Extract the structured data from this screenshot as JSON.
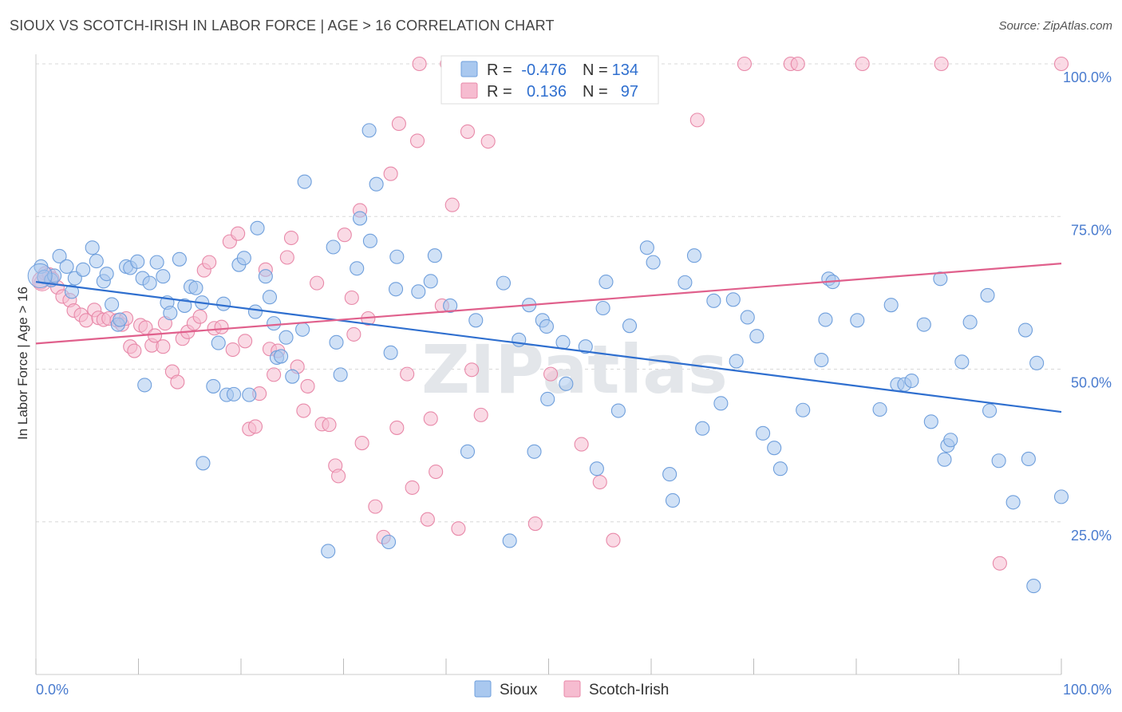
{
  "title": "SIOUX VS SCOTCH-IRISH IN LABOR FORCE | AGE > 16 CORRELATION CHART",
  "source": "Source: ZipAtlas.com",
  "watermark": "ZIPatlas",
  "legend_box": {
    "rows": [
      {
        "r_label": "R =",
        "r_value": "-0.476",
        "n_label": "N =",
        "n_value": "134"
      },
      {
        "r_label": "R =",
        "r_value": "0.136",
        "n_label": "N =",
        "n_value": "97"
      }
    ]
  },
  "bottom_legend": [
    "Sioux",
    "Scotch-Irish"
  ],
  "colors": {
    "sioux_fill": "#a9c8ef",
    "sioux_stroke": "#6f9fdc",
    "sioux_line": "#2f6fcf",
    "scotch_fill": "#f6bcd0",
    "scotch_stroke": "#e889a9",
    "scotch_line": "#e0608c",
    "grid": "#d8d8d8",
    "tick_text": "#4a7ccf"
  },
  "chart_data": {
    "type": "scatter",
    "title": "SIOUX VS SCOTCH-IRISH IN LABOR FORCE | AGE > 16 CORRELATION CHART",
    "xlabel": "",
    "ylabel": "In Labor Force | Age > 16",
    "x_tick_labels": [
      "0.0%",
      "100.0%"
    ],
    "y_tick_labels": [
      "25.0%",
      "50.0%",
      "75.0%",
      "100.0%"
    ],
    "xlim": [
      0,
      100
    ],
    "ylim": [
      0,
      100
    ],
    "grid": true,
    "legend_position": "top-center",
    "series": [
      {
        "name": "Sioux",
        "r": -0.476,
        "n": 134,
        "trend": {
          "x": [
            0,
            100
          ],
          "y": [
            64.3,
            43.0
          ]
        },
        "points": [
          [
            0.5,
            66.8
          ],
          [
            0.8,
            65.1
          ],
          [
            1.5,
            64.6
          ],
          [
            1.8,
            65.3
          ],
          [
            2.3,
            68.5
          ],
          [
            3,
            66.8
          ],
          [
            3.5,
            62.7
          ],
          [
            3.8,
            64.9
          ],
          [
            4.6,
            66.3
          ],
          [
            5.5,
            69.9
          ],
          [
            5.9,
            67.7
          ],
          [
            6.6,
            64.4
          ],
          [
            6.9,
            65.6
          ],
          [
            7.4,
            60.6
          ],
          [
            8.0,
            57.3
          ],
          [
            8.2,
            58.1
          ],
          [
            8.8,
            66.8
          ],
          [
            9.2,
            66.6
          ],
          [
            9.9,
            67.6
          ],
          [
            10.4,
            64.9
          ],
          [
            10.6,
            47.4
          ],
          [
            11.1,
            64.1
          ],
          [
            11.8,
            67.5
          ],
          [
            12.4,
            65.2
          ],
          [
            12.8,
            60.9
          ],
          [
            13.1,
            59.2
          ],
          [
            14,
            68.0
          ],
          [
            14.5,
            60.4
          ],
          [
            15.1,
            63.5
          ],
          [
            15.6,
            63.3
          ],
          [
            16.2,
            60.9
          ],
          [
            16.3,
            34.6
          ],
          [
            17.3,
            47.2
          ],
          [
            17.8,
            54.3
          ],
          [
            18.3,
            60.7
          ],
          [
            18.6,
            45.8
          ],
          [
            19.3,
            45.9
          ],
          [
            19.8,
            67.1
          ],
          [
            20.3,
            68.2
          ],
          [
            20.8,
            45.8
          ],
          [
            21.4,
            59.4
          ],
          [
            21.6,
            73.1
          ],
          [
            22.4,
            65.2
          ],
          [
            22.8,
            61.8
          ],
          [
            23.2,
            57.5
          ],
          [
            23.5,
            51.9
          ],
          [
            23.9,
            52.1
          ],
          [
            24.4,
            55.2
          ],
          [
            25,
            48.8
          ],
          [
            26,
            56.5
          ],
          [
            26.2,
            80.7
          ],
          [
            29,
            70.0
          ],
          [
            29.3,
            54.4
          ],
          [
            29.7,
            49.1
          ],
          [
            31.3,
            66.5
          ],
          [
            31.6,
            74.7
          ],
          [
            32.5,
            89.1
          ],
          [
            32.6,
            71.0
          ],
          [
            33.2,
            80.3
          ],
          [
            34.6,
            52.7
          ],
          [
            35.1,
            63.1
          ],
          [
            35.2,
            68.4
          ],
          [
            37.3,
            62.7
          ],
          [
            38.5,
            64.4
          ],
          [
            38.9,
            68.6
          ],
          [
            40.4,
            60.4
          ],
          [
            42.1,
            36.5
          ],
          [
            42.9,
            58.0
          ],
          [
            45.6,
            64.1
          ],
          [
            46.2,
            21.9
          ],
          [
            47.1,
            54.8
          ],
          [
            48.1,
            60.5
          ],
          [
            48.6,
            36.5
          ],
          [
            49.4,
            58.0
          ],
          [
            49.8,
            57.0
          ],
          [
            49.9,
            45.1
          ],
          [
            51.4,
            54.4
          ],
          [
            51.7,
            47.6
          ],
          [
            53.6,
            53.7
          ],
          [
            54.7,
            33.7
          ],
          [
            55.3,
            60.0
          ],
          [
            55.6,
            64.3
          ],
          [
            56.8,
            43.2
          ],
          [
            57.9,
            57.1
          ],
          [
            59.6,
            69.9
          ],
          [
            60.2,
            67.5
          ],
          [
            61.8,
            32.8
          ],
          [
            62.1,
            28.5
          ],
          [
            63.3,
            64.2
          ],
          [
            64.2,
            68.6
          ],
          [
            65,
            40.3
          ],
          [
            66.1,
            61.2
          ],
          [
            66.8,
            44.4
          ],
          [
            68,
            61.4
          ],
          [
            68.3,
            51.3
          ],
          [
            69.4,
            58.5
          ],
          [
            70.3,
            55.4
          ],
          [
            70.9,
            39.5
          ],
          [
            72,
            37.1
          ],
          [
            72.6,
            33.7
          ],
          [
            74.8,
            43.3
          ],
          [
            76.6,
            51.5
          ],
          [
            77,
            58.1
          ],
          [
            77.3,
            64.8
          ],
          [
            77.7,
            64.3
          ],
          [
            80.1,
            58.0
          ],
          [
            82.3,
            43.4
          ],
          [
            83.4,
            60.5
          ],
          [
            84,
            47.5
          ],
          [
            84.7,
            47.5
          ],
          [
            85.4,
            48.1
          ],
          [
            86.6,
            57.3
          ],
          [
            87.3,
            41.4
          ],
          [
            88.2,
            64.8
          ],
          [
            88.6,
            35.2
          ],
          [
            88.9,
            37.5
          ],
          [
            89.2,
            38.4
          ],
          [
            90.3,
            51.2
          ],
          [
            91.1,
            57.7
          ],
          [
            92.8,
            62.1
          ],
          [
            93,
            43.2
          ],
          [
            93.9,
            35.0
          ],
          [
            95.3,
            28.2
          ],
          [
            96.5,
            56.4
          ],
          [
            96.8,
            35.3
          ],
          [
            97.3,
            14.5
          ],
          [
            97.6,
            51.0
          ],
          [
            100,
            29.1
          ],
          [
            28.5,
            20.2
          ],
          [
            34.4,
            21.7
          ]
        ]
      },
      {
        "name": "Scotch-Irish",
        "r": 0.136,
        "n": 97,
        "trend": {
          "x": [
            0,
            100
          ],
          "y": [
            54.2,
            67.3
          ]
        },
        "points": [
          [
            0.5,
            64.2
          ],
          [
            0.9,
            65.7
          ],
          [
            1.3,
            65.5
          ],
          [
            1.6,
            64.8
          ],
          [
            2.1,
            63.4
          ],
          [
            2.6,
            61.9
          ],
          [
            3.3,
            61.3
          ],
          [
            3.7,
            59.6
          ],
          [
            4.4,
            58.9
          ],
          [
            4.9,
            58.0
          ],
          [
            5.7,
            59.7
          ],
          [
            6.1,
            58.4
          ],
          [
            6.6,
            58.1
          ],
          [
            7.1,
            58.3
          ],
          [
            7.9,
            58.0
          ],
          [
            8.4,
            57.3
          ],
          [
            8.8,
            58.3
          ],
          [
            9.2,
            53.7
          ],
          [
            9.6,
            53.0
          ],
          [
            10.2,
            57.2
          ],
          [
            10.7,
            56.8
          ],
          [
            11.3,
            53.9
          ],
          [
            11.6,
            55.5
          ],
          [
            12.4,
            53.7
          ],
          [
            12.6,
            57.5
          ],
          [
            13.3,
            49.6
          ],
          [
            13.8,
            47.9
          ],
          [
            14.3,
            55.0
          ],
          [
            14.8,
            56.1
          ],
          [
            15.4,
            57.5
          ],
          [
            16,
            58.6
          ],
          [
            16.4,
            66.2
          ],
          [
            16.9,
            67.5
          ],
          [
            17.4,
            56.7
          ],
          [
            18.1,
            56.9
          ],
          [
            18.9,
            70.9
          ],
          [
            19.2,
            53.2
          ],
          [
            19.7,
            72.2
          ],
          [
            20.4,
            54.6
          ],
          [
            20.8,
            40.2
          ],
          [
            21.4,
            40.6
          ],
          [
            21.8,
            46.0
          ],
          [
            22.4,
            66.3
          ],
          [
            22.8,
            53.3
          ],
          [
            23.2,
            49.1
          ],
          [
            23.6,
            53.0
          ],
          [
            24.5,
            68.3
          ],
          [
            24.9,
            71.5
          ],
          [
            25.5,
            50.4
          ],
          [
            26.1,
            43.2
          ],
          [
            26.5,
            47.2
          ],
          [
            27.4,
            64.1
          ],
          [
            27.9,
            41.0
          ],
          [
            28.6,
            40.9
          ],
          [
            29.2,
            34.2
          ],
          [
            29.5,
            32.5
          ],
          [
            30.1,
            72.0
          ],
          [
            31.0,
            55.7
          ],
          [
            30.8,
            61.7
          ],
          [
            31.6,
            76.0
          ],
          [
            31.8,
            37.9
          ],
          [
            32.4,
            58.3
          ],
          [
            33.1,
            27.5
          ],
          [
            33.9,
            22.5
          ],
          [
            34.6,
            82.0
          ],
          [
            35.2,
            40.4
          ],
          [
            35.4,
            90.2
          ],
          [
            36.2,
            49.2
          ],
          [
            36.7,
            30.6
          ],
          [
            37.2,
            87.4
          ],
          [
            37.4,
            100.0
          ],
          [
            38.2,
            25.4
          ],
          [
            38.5,
            41.9
          ],
          [
            39.0,
            33.2
          ],
          [
            39.6,
            60.4
          ],
          [
            40.1,
            100.0
          ],
          [
            40.6,
            76.9
          ],
          [
            41.2,
            23.9
          ],
          [
            42.1,
            88.9
          ],
          [
            42.5,
            49.9
          ],
          [
            43.4,
            42.5
          ],
          [
            44.1,
            87.3
          ],
          [
            44.8,
            100.0
          ],
          [
            48.7,
            24.7
          ],
          [
            50.2,
            49.2
          ],
          [
            53.2,
            37.7
          ],
          [
            55.0,
            31.5
          ],
          [
            56.3,
            22.0
          ],
          [
            57.5,
            100.0
          ],
          [
            64.5,
            90.8
          ],
          [
            69.1,
            100.0
          ],
          [
            73.6,
            100.0
          ],
          [
            74.3,
            100.0
          ],
          [
            80.6,
            100.0
          ],
          [
            88.3,
            100.0
          ],
          [
            94.0,
            18.2
          ],
          [
            100,
            100.0
          ]
        ]
      }
    ]
  }
}
